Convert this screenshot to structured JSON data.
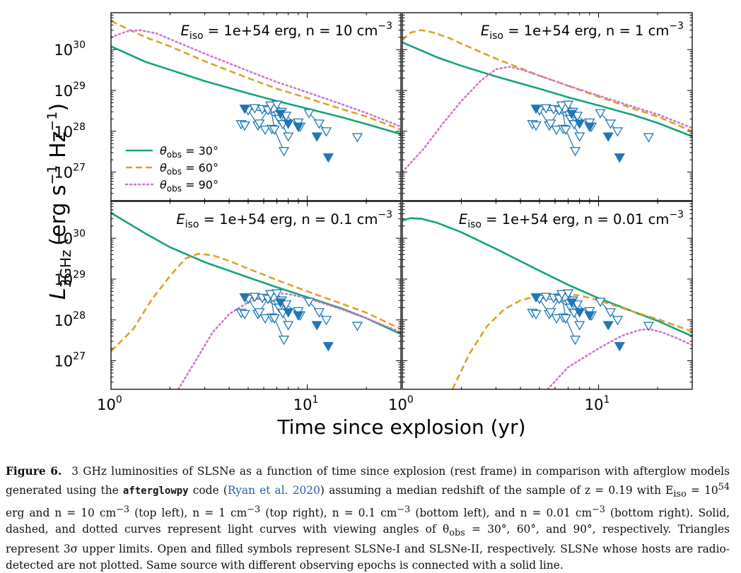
{
  "figure": {
    "ylabel_main": "L",
    "ylabel_sub": "3GHz",
    "ylabel_unit": "(erg s",
    "ylabel_unit2": " Hz",
    "ylabel_unit3": ")",
    "xlabel": "Time since explosion (yr)"
  },
  "caption": {
    "label": "Figure 6.",
    "t1": "3 GHz luminosities of SLSNe as a function of time since explosion (rest frame) in comparison with afterglow models generated using the ",
    "code": "afterglowpy",
    "t2": " code (",
    "ref": "Ryan et al. 2020",
    "t3": ") assuming a median redshift of the sample of z = 0.19 with E",
    "t3sub": "iso",
    "t4": " = 10",
    "t4sup": "54",
    "t5": " erg and n = 10 cm",
    "t5sup": "−3",
    "t6": " (top left), n = 1 cm",
    "t6sup": "−3",
    "t7": " (top right), n = 0.1 cm",
    "t7sup": "−3",
    "t8": " (bottom left), and n = 0.01 cm",
    "t8sup": "−3",
    "t9": " (bottom right). Solid, dashed, and dotted curves represent light curves with viewing angles of θ",
    "t9sub": "obs",
    "t10": " = 30°, 60°, and 90°, respectively. Triangles represent 3σ upper limits. Open and filled symbols represent SLSNe-I and SLSNe-II, respectively. SLSNe whose hosts are radio-detected are not plotted. Same source with different observing epochs is connected with a solid line."
  },
  "chart_data": {
    "type": "line",
    "xscale": "log",
    "yscale": "log",
    "xlim": [
      1,
      30
    ],
    "ylim": [
      2e+26,
      8e+30
    ],
    "xlabel": "Time since explosion (yr)",
    "ylabel": "L_3GHz (erg s^-1 Hz^-1)",
    "xticks": [
      "10^0",
      "10^1"
    ],
    "yticks": [
      "10^27",
      "10^28",
      "10^29",
      "10^30"
    ],
    "colors": {
      "theta30": "#15a37a",
      "theta60": "#e0a028",
      "theta90": "#cf78c8",
      "points": "#1f77b4"
    },
    "legend": {
      "placement": "lower-left of top-left panel",
      "entries": [
        {
          "pre": "θ",
          "sub": "obs",
          "post": " = 30°",
          "style": "solid",
          "color": "#15a37a"
        },
        {
          "pre": "θ",
          "sub": "obs",
          "post": " = 60°",
          "style": "dashed",
          "color": "#e0a028"
        },
        {
          "pre": "θ",
          "sub": "obs",
          "post": " = 90°",
          "style": "dotted",
          "color": "#cf78c8"
        }
      ]
    },
    "panels": [
      {
        "name": "top-left",
        "title": {
          "pre": "E",
          "sub": "iso",
          "mid": " = 1e+54 erg, n = 10 cm",
          "sup": "−3"
        },
        "curves": {
          "theta30": [
            [
              1,
              1.2e+30
            ],
            [
              1.5,
              5e+29
            ],
            [
              2,
              3.2e+29
            ],
            [
              3,
              1.7e+29
            ],
            [
              5,
              8.5e+28
            ],
            [
              7,
              5.5e+28
            ],
            [
              10,
              3.6e+28
            ],
            [
              15,
              2.2e+28
            ],
            [
              20,
              1.5e+28
            ],
            [
              30,
              8.5e+27
            ]
          ],
          "theta60": [
            [
              1,
              5e+30
            ],
            [
              1.5,
              2e+30
            ],
            [
              2,
              1.2e+30
            ],
            [
              3,
              5.2e+29
            ],
            [
              5,
              2e+29
            ],
            [
              7,
              1.1e+29
            ],
            [
              10,
              6.5e+28
            ],
            [
              15,
              3.5e+28
            ],
            [
              20,
              2.3e+28
            ],
            [
              30,
              1.1e+28
            ]
          ],
          "theta90": [
            [
              1,
              2e+30
            ],
            [
              1.2,
              2.8e+30
            ],
            [
              1.4,
              3e+30
            ],
            [
              1.7,
              2.5e+30
            ],
            [
              2,
              1.8e+30
            ],
            [
              3,
              8e+29
            ],
            [
              5,
              3e+29
            ],
            [
              7,
              1.6e+29
            ],
            [
              10,
              9e+28
            ],
            [
              15,
              4.6e+28
            ],
            [
              20,
              2.8e+28
            ],
            [
              30,
              1.3e+28
            ]
          ]
        }
      },
      {
        "name": "top-right",
        "title": {
          "pre": "E",
          "sub": "iso",
          "mid": " = 1e+54 erg, n = 1 cm",
          "sup": "−3"
        },
        "curves": {
          "theta30": [
            [
              1,
              1.5e+30
            ],
            [
              1.5,
              6.5e+29
            ],
            [
              2,
              4e+29
            ],
            [
              3,
              2.2e+29
            ],
            [
              5,
              1.1e+29
            ],
            [
              7,
              6.8e+28
            ],
            [
              10,
              4.3e+28
            ],
            [
              15,
              2.5e+28
            ],
            [
              20,
              1.6e+28
            ],
            [
              30,
              7.5e+27
            ]
          ],
          "theta60": [
            [
              1,
              1.7e+30
            ],
            [
              1.1,
              2.6e+30
            ],
            [
              1.25,
              3e+30
            ],
            [
              1.4,
              2.7e+30
            ],
            [
              1.7,
              2e+30
            ],
            [
              2,
              1.4e+30
            ],
            [
              3,
              6e+29
            ],
            [
              5,
              2.3e+29
            ],
            [
              7,
              1.3e+29
            ],
            [
              10,
              7e+28
            ],
            [
              15,
              3.6e+28
            ],
            [
              20,
              2.3e+28
            ],
            [
              30,
              1e+28
            ]
          ],
          "theta90": [
            [
              1,
              1e+27
            ],
            [
              1.3,
              4e+27
            ],
            [
              1.6,
              1.5e+28
            ],
            [
              2,
              5.5e+28
            ],
            [
              2.5,
              1.7e+29
            ],
            [
              3,
              3.3e+29
            ],
            [
              3.5,
              3.8e+29
            ],
            [
              4,
              3.3e+29
            ],
            [
              5,
              2.3e+29
            ],
            [
              7,
              1.3e+29
            ],
            [
              10,
              7.5e+28
            ],
            [
              15,
              4e+28
            ],
            [
              20,
              2.6e+28
            ],
            [
              30,
              1.2e+28
            ]
          ]
        }
      },
      {
        "name": "bottom-left",
        "title": {
          "pre": "E",
          "sub": "iso",
          "mid": " = 1e+54 erg, n = 0.1 cm",
          "sup": "−3"
        },
        "curves": {
          "theta30": [
            [
              1,
              4.2e+30
            ],
            [
              1.5,
              1.3e+30
            ],
            [
              2,
              6e+29
            ],
            [
              3,
              2.6e+29
            ],
            [
              5,
              1.1e+29
            ],
            [
              7,
              6.3e+28
            ],
            [
              10,
              3.6e+28
            ],
            [
              15,
              1.9e+28
            ],
            [
              20,
              1.1e+28
            ],
            [
              30,
              4.5e+27
            ]
          ],
          "theta60": [
            [
              1,
              1.7e+27
            ],
            [
              1.3,
              6e+27
            ],
            [
              1.6,
              3e+28
            ],
            [
              2,
              1.2e+29
            ],
            [
              2.4,
              3.2e+29
            ],
            [
              2.8,
              4.2e+29
            ],
            [
              3.3,
              3.8e+29
            ],
            [
              4,
              2.8e+29
            ],
            [
              5,
              1.8e+29
            ],
            [
              7,
              9.5e+28
            ],
            [
              10,
              5e+28
            ],
            [
              15,
              2.5e+28
            ],
            [
              20,
              1.5e+28
            ],
            [
              30,
              6e+27
            ]
          ],
          "theta90": [
            [
              2.2,
              2e+26
            ],
            [
              2.7,
              1e+27
            ],
            [
              3.3,
              5e+27
            ],
            [
              4,
              1.4e+28
            ],
            [
              5,
              2.7e+28
            ],
            [
              6,
              3.8e+28
            ],
            [
              7,
              4.5e+28
            ],
            [
              8,
              4.3e+28
            ],
            [
              10,
              3.4e+28
            ],
            [
              15,
              1.8e+28
            ],
            [
              20,
              1.1e+28
            ],
            [
              30,
              5e+27
            ]
          ]
        }
      },
      {
        "name": "bottom-right",
        "title": {
          "pre": "E",
          "sub": "iso",
          "mid": " = 1e+54 erg, n = 0.01 cm",
          "sup": "−3"
        },
        "curves": {
          "theta30": [
            [
              1,
              2.7e+30
            ],
            [
              1.1,
              3.1e+30
            ],
            [
              1.25,
              3e+30
            ],
            [
              1.5,
              2.4e+30
            ],
            [
              2,
              1.4e+30
            ],
            [
              3,
              5.5e+29
            ],
            [
              5,
              1.6e+29
            ],
            [
              7,
              7.2e+28
            ],
            [
              10,
              3.4e+28
            ],
            [
              15,
              1.6e+28
            ],
            [
              20,
              9.5e+27
            ],
            [
              30,
              4e+27
            ]
          ],
          "theta60": [
            [
              1.8,
              2e+26
            ],
            [
              2.2,
              1.5e+27
            ],
            [
              2.7,
              7e+27
            ],
            [
              3.3,
              1.8e+28
            ],
            [
              4,
              3e+28
            ],
            [
              5,
              4e+28
            ],
            [
              6.5,
              4.4e+28
            ],
            [
              8,
              4e+28
            ],
            [
              10,
              3e+28
            ],
            [
              15,
              1.6e+28
            ],
            [
              20,
              1.05e+28
            ],
            [
              30,
              5.2e+27
            ]
          ],
          "theta90": [
            [
              5.5,
              2e+26
            ],
            [
              7,
              7e+26
            ],
            [
              10,
              2e+27
            ],
            [
              13,
              4e+27
            ],
            [
              16,
              5.6e+27
            ],
            [
              18,
              6e+27
            ],
            [
              21,
              5e+27
            ],
            [
              25,
              3.6e+27
            ],
            [
              30,
              2.4e+27
            ]
          ]
        }
      }
    ],
    "points": {
      "open": [
        [
          4.6,
          1.5e+28
        ],
        [
          4.8,
          1.4e+28
        ],
        [
          5.0,
          3.3e+28
        ],
        [
          5.4,
          3.7e+28
        ],
        [
          5.6,
          1.4e+28
        ],
        [
          5.7,
          1.55e+28
        ],
        [
          5.9,
          3.5e+28
        ],
        [
          6.1,
          1.1e+28
        ],
        [
          6.3,
          3.3e+28
        ],
        [
          6.5,
          4.3e+28
        ],
        [
          6.6,
          1.15e+28
        ],
        [
          6.8,
          1.1e+28
        ],
        [
          7.0,
          4.5e+28
        ],
        [
          7.1,
          2.5e+28
        ],
        [
          7.2,
          2e+28
        ],
        [
          7.4,
          3e+28
        ],
        [
          7.5,
          1.5e+28
        ],
        [
          7.6,
          3.3e+27
        ],
        [
          7.8,
          2.4e+28
        ],
        [
          8.0,
          7.5e+27
        ],
        [
          9.0,
          1.65e+28
        ],
        [
          9.2,
          1.3e+28
        ],
        [
          10.2,
          2.8e+28
        ],
        [
          11.5,
          1.55e+28
        ],
        [
          12.5,
          1e+28
        ],
        [
          18,
          7.2e+27
        ]
      ],
      "filled": [
        [
          4.8,
          3.6e+28
        ],
        [
          7.3,
          2.7e+28
        ],
        [
          8.0,
          1.55e+28
        ],
        [
          9.0,
          1.3e+28
        ],
        [
          11.2,
          7.5e+27
        ],
        [
          12.8,
          2.3e+27
        ]
      ],
      "connections": [
        [
          [
            5.0,
            3.3e+28
          ],
          [
            5.6,
            1.4e+28
          ],
          [
            6.3,
            3.3e+28
          ]
        ],
        [
          [
            6.5,
            4.3e+28
          ],
          [
            6.8,
            1.1e+28
          ],
          [
            7.6,
            3.3e+27
          ]
        ],
        [
          [
            7.0,
            4.5e+28
          ],
          [
            7.8,
            2.4e+28
          ],
          [
            9.2,
            1.3e+28
          ]
        ],
        [
          [
            4.8,
            3.6e+28
          ],
          [
            7.3,
            2.7e+28
          ],
          [
            8.0,
            1.55e+28
          ]
        ],
        [
          [
            10.2,
            2.8e+28
          ],
          [
            12.5,
            1e+28
          ]
        ],
        [
          [
            5.9,
            3.5e+28
          ],
          [
            7.2,
            2e+28
          ],
          [
            8.0,
            7.5e+27
          ]
        ]
      ]
    }
  }
}
